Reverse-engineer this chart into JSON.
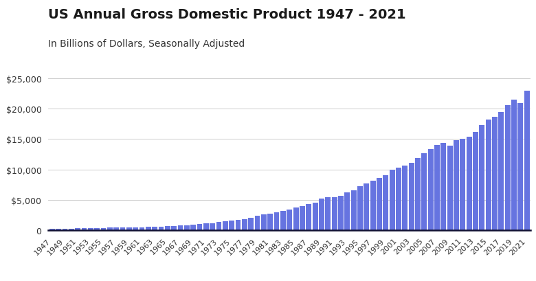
{
  "title": "US Annual Gross Domestic Product 1947 - 2021",
  "subtitle": "In Billions of Dollars, Seasonally Adjusted",
  "bar_color": "#6674e0",
  "background_color": "#ffffff",
  "ylim": [
    0,
    25000
  ],
  "yticks": [
    0,
    5000,
    10000,
    15000,
    20000,
    25000
  ],
  "years": [
    1947,
    1948,
    1949,
    1950,
    1951,
    1952,
    1953,
    1954,
    1955,
    1956,
    1957,
    1958,
    1959,
    1960,
    1961,
    1962,
    1963,
    1964,
    1965,
    1966,
    1967,
    1968,
    1969,
    1970,
    1971,
    1972,
    1973,
    1974,
    1975,
    1976,
    1977,
    1978,
    1979,
    1980,
    1981,
    1982,
    1983,
    1984,
    1985,
    1986,
    1987,
    1988,
    1989,
    1990,
    1991,
    1992,
    1993,
    1994,
    1995,
    1996,
    1997,
    1998,
    1999,
    2000,
    2001,
    2002,
    2003,
    2004,
    2005,
    2006,
    2007,
    2008,
    2009,
    2010,
    2011,
    2012,
    2013,
    2014,
    2015,
    2016,
    2017,
    2018,
    2019,
    2020,
    2021
  ],
  "gdp": [
    243.1,
    259.7,
    258.0,
    284.6,
    328.5,
    345.5,
    364.6,
    364.8,
    398.0,
    419.2,
    441.1,
    447.3,
    483.7,
    503.7,
    520.0,
    560.3,
    590.5,
    632.4,
    682.9,
    750.1,
    794.1,
    868.5,
    944.0,
    1023.1,
    1096.1,
    1207.0,
    1343.5,
    1438.9,
    1548.8,
    1688.9,
    1877.6,
    2086.0,
    2356.6,
    2632.1,
    2788.1,
    2954.1,
    3166.0,
    3405.7,
    3772.2,
    4001.1,
    4341.5,
    4579.6,
    5163.2,
    5485.3,
    5461.5,
    5619.4,
    6244.4,
    6553.0,
    7265.4,
    7664.1,
    8100.2,
    8614.3,
    9060.2,
    9951.5,
    10286.2,
    10642.3,
    11142.1,
    11867.8,
    12638.4,
    13398.9,
    14061.8,
    14369.1,
    13898.3,
    14783.8,
    15020.6,
    15354.6,
    16163.2,
    17348.1,
    18219.3,
    18707.2,
    19485.4,
    20533.1,
    21433.2,
    20893.7,
    22996.1
  ],
  "title_fontsize": 14,
  "subtitle_fontsize": 10,
  "tick_fontsize": 9,
  "xtick_fontsize": 8
}
